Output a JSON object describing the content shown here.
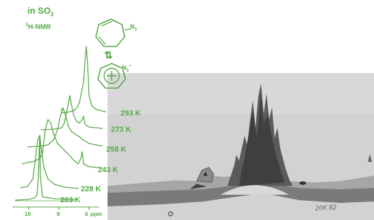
{
  "title_line1": "in SO",
  "title_sub": "2",
  "title_line2_sup": "1",
  "title_line2": "H-NMR",
  "n3_label_top": "N",
  "n3_label_top_sub": "3",
  "n3_label_ion": "N",
  "n3_label_ion_sub": "3",
  "n3_label_ion_sup": "−",
  "equilibrium_arrow": "⇅",
  "temperatures": [
    "293 K",
    "273 K",
    "258 K",
    "243 K",
    "228 K",
    "203 K"
  ],
  "axis_ticks": [
    "10",
    "8",
    "6"
  ],
  "axis_unit": "ppm",
  "photo_stamp": "20K 82",
  "colors": {
    "green": "#55a845",
    "photo_bg": "#cfcfcf",
    "trace_dark": "#4a4a4a",
    "trace_mid": "#6e6e6e"
  }
}
